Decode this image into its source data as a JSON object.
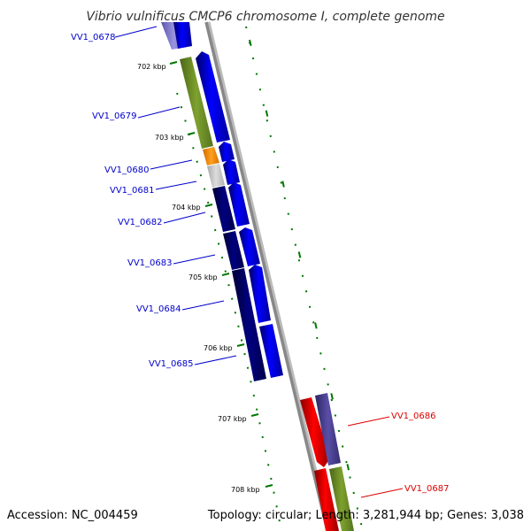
{
  "title": "Vibrio vulnificus CMCP6 chromosome I, complete genome",
  "footer": {
    "accession": "Accession: NC_004459",
    "summary": "Topology: circular; Length: 3,281,944 bp; Genes: 3,038"
  },
  "ruler": {
    "labels": [
      "702 kbp",
      "703 kbp",
      "704 kbp",
      "705 kbp",
      "706 kbp",
      "707 kbp",
      "708 kbp"
    ]
  },
  "genes": [
    {
      "id": "VV1_0678",
      "color": "#0000cc"
    },
    {
      "id": "VV1_0679",
      "color": "#0000cc"
    },
    {
      "id": "VV1_0680",
      "color": "#0000cc"
    },
    {
      "id": "VV1_0681",
      "color": "#0000cc"
    },
    {
      "id": "VV1_0682",
      "color": "#0000cc"
    },
    {
      "id": "VV1_0683",
      "color": "#0000cc"
    },
    {
      "id": "VV1_0684",
      "color": "#0000cc"
    },
    {
      "id": "VV1_0685",
      "color": "#0000cc"
    },
    {
      "id": "VV1_0686",
      "color": "#dd0000"
    },
    {
      "id": "VV1_0687",
      "color": "#dd0000"
    }
  ],
  "colors": {
    "backbone": "#888888",
    "forward_cds": "#0000ff",
    "reverse_cds": "#ff0000",
    "cog_darkblue": "#000080",
    "cog_olive": "#6b8e23",
    "cog_orange": "#ff8c00",
    "cog_gray": "#c8c8c8",
    "cog_slateblue": "#483d8b",
    "tick": "#007700"
  }
}
